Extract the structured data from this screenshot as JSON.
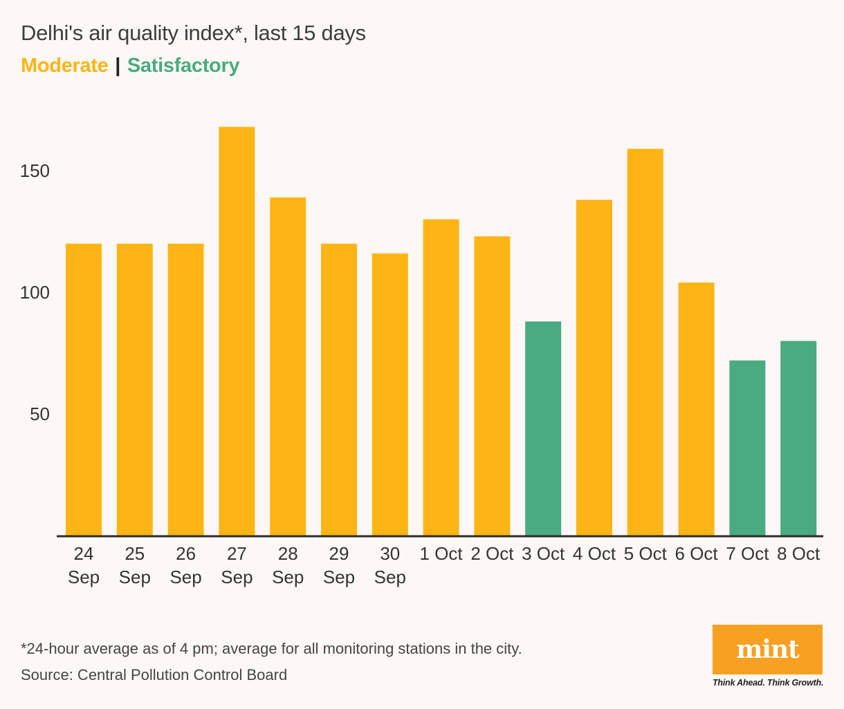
{
  "title": "Delhi's air quality index*, last 15 days",
  "legend": {
    "moderate_label": "Moderate",
    "separator": "|",
    "satisfactory_label": "Satisfactory"
  },
  "colors": {
    "moderate": "#fdb515",
    "satisfactory": "#4aaa81",
    "axis": "#2b2b2b",
    "text": "#333333",
    "logo_bg": "#f7a021"
  },
  "chart_data": {
    "type": "bar",
    "title": "Delhi's air quality index*, last 15 days",
    "xlabel": "",
    "ylabel": "",
    "ylim": [
      0,
      170
    ],
    "yticks": [
      50,
      100,
      150
    ],
    "grid": false,
    "categories": [
      [
        "24",
        "Sep"
      ],
      [
        "25",
        "Sep"
      ],
      [
        "26",
        "Sep"
      ],
      [
        "27",
        "Sep"
      ],
      [
        "28",
        "Sep"
      ],
      [
        "29",
        "Sep"
      ],
      [
        "30",
        "Sep"
      ],
      [
        "1 Oct"
      ],
      [
        "2 Oct"
      ],
      [
        "3 Oct"
      ],
      [
        "4 Oct"
      ],
      [
        "5 Oct"
      ],
      [
        "6 Oct"
      ],
      [
        "7 Oct"
      ],
      [
        "8 Oct"
      ]
    ],
    "values": [
      120,
      120,
      120,
      168,
      139,
      120,
      116,
      130,
      123,
      88,
      138,
      159,
      104,
      72,
      80
    ],
    "category_class": [
      "moderate",
      "moderate",
      "moderate",
      "moderate",
      "moderate",
      "moderate",
      "moderate",
      "moderate",
      "moderate",
      "satisfactory",
      "moderate",
      "moderate",
      "moderate",
      "satisfactory",
      "satisfactory"
    ]
  },
  "footnote": "*24-hour average as of 4 pm; average for all monitoring stations in the city.",
  "source": "Source: Central Pollution Control Board",
  "logo": {
    "wordmark": "mint",
    "tagline": "Think Ahead. Think Growth."
  }
}
